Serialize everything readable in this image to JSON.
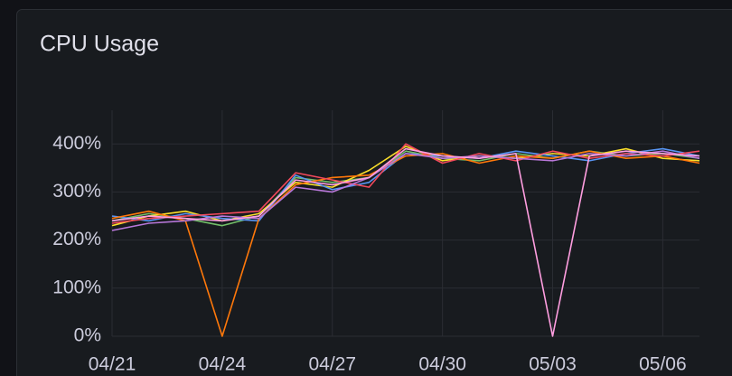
{
  "chart_data": {
    "type": "line",
    "title": "CPU Usage",
    "x": [
      "04/21",
      "04/22",
      "04/23",
      "04/24",
      "04/25",
      "04/26",
      "04/27",
      "04/28",
      "04/29",
      "04/30",
      "05/01",
      "05/02",
      "05/03",
      "05/04",
      "05/05",
      "05/06",
      "05/07"
    ],
    "xlim": [
      "04/21",
      "05/07"
    ],
    "xticks": [
      "04/21",
      "04/24",
      "04/27",
      "04/30",
      "05/03",
      "05/06"
    ],
    "ylim": [
      0,
      470
    ],
    "yticks": [
      {
        "value": 0,
        "label": "0%"
      },
      {
        "value": 100,
        "label": "100%"
      },
      {
        "value": 200,
        "label": "200%"
      },
      {
        "value": 300,
        "label": "300%"
      },
      {
        "value": 400,
        "label": "400%"
      }
    ],
    "grid": true,
    "series": [
      {
        "color": "#73bf69",
        "values": [
          240,
          255,
          245,
          230,
          250,
          330,
          320,
          330,
          385,
          370,
          365,
          380,
          370,
          385,
          375,
          380,
          370
        ]
      },
      {
        "color": "#fade2a",
        "values": [
          230,
          250,
          260,
          240,
          255,
          320,
          310,
          345,
          395,
          365,
          375,
          370,
          380,
          375,
          390,
          370,
          365
        ]
      },
      {
        "color": "#5794f2",
        "values": [
          250,
          240,
          255,
          245,
          240,
          335,
          305,
          320,
          380,
          375,
          370,
          385,
          375,
          365,
          380,
          390,
          375
        ]
      },
      {
        "color": "#ff780a",
        "values": [
          245,
          260,
          240,
          0,
          245,
          315,
          330,
          335,
          375,
          380,
          360,
          375,
          370,
          385,
          370,
          375,
          360
        ]
      },
      {
        "color": "#f2495c",
        "values": [
          235,
          245,
          250,
          255,
          260,
          340,
          325,
          310,
          400,
          360,
          380,
          365,
          385,
          370,
          380,
          375,
          385
        ]
      },
      {
        "color": "#b877d9",
        "values": [
          220,
          235,
          240,
          250,
          245,
          310,
          300,
          330,
          380,
          370,
          375,
          370,
          365,
          380,
          375,
          385,
          370
        ]
      },
      {
        "color": "#ff9ee0",
        "values": [
          240,
          250,
          245,
          240,
          250,
          325,
          315,
          330,
          390,
          375,
          370,
          380,
          0,
          375,
          385,
          380,
          375
        ]
      }
    ]
  }
}
